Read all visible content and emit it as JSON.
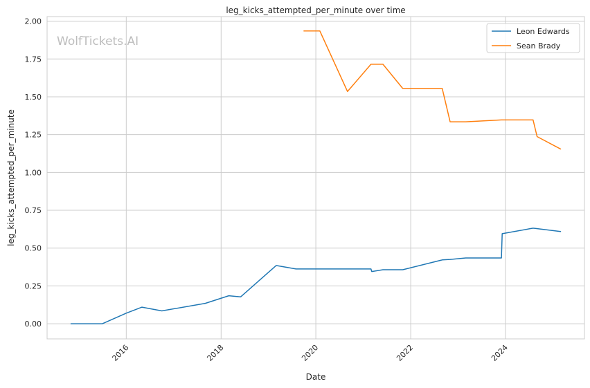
{
  "chart_data": {
    "type": "line",
    "title": "leg_kicks_attempted_per_minute over time",
    "xlabel": "Date",
    "ylabel": "leg_kicks_attempted_per_minute",
    "watermark": "WolfTickets.AI",
    "x_is_date": true,
    "xlim": [
      "2014-05-01",
      "2025-09-01"
    ],
    "ylim": [
      -0.1,
      2.03
    ],
    "x_ticks": [
      "2016-01-01",
      "2018-01-01",
      "2020-01-01",
      "2022-01-01",
      "2024-01-01"
    ],
    "x_tick_labels": [
      "2016",
      "2018",
      "2020",
      "2022",
      "2024"
    ],
    "y_ticks": [
      0.0,
      0.25,
      0.5,
      0.75,
      1.0,
      1.25,
      1.5,
      1.75,
      2.0
    ],
    "y_tick_labels": [
      "0.00",
      "0.25",
      "0.50",
      "0.75",
      "1.00",
      "1.25",
      "1.50",
      "1.75",
      "2.00"
    ],
    "grid": true,
    "legend_position": "top-right",
    "series": [
      {
        "name": "Leon Edwards",
        "color": "#1f77b4",
        "points": [
          [
            "2014-11-01",
            0.0
          ],
          [
            "2015-07-01",
            0.0
          ],
          [
            "2016-01-01",
            0.07
          ],
          [
            "2016-05-01",
            0.11
          ],
          [
            "2016-10-01",
            0.085
          ],
          [
            "2017-09-01",
            0.135
          ],
          [
            "2018-03-01",
            0.185
          ],
          [
            "2018-06-01",
            0.178
          ],
          [
            "2019-03-01",
            0.385
          ],
          [
            "2019-08-01",
            0.362
          ],
          [
            "2021-03-01",
            0.362
          ],
          [
            "2021-03-07",
            0.345
          ],
          [
            "2021-06-01",
            0.357
          ],
          [
            "2021-11-01",
            0.357
          ],
          [
            "2022-09-01",
            0.422
          ],
          [
            "2022-11-01",
            0.425
          ],
          [
            "2023-03-01",
            0.435
          ],
          [
            "2023-12-01",
            0.435
          ],
          [
            "2023-12-07",
            0.595
          ],
          [
            "2024-08-01",
            0.632
          ],
          [
            "2025-03-01",
            0.61
          ]
        ]
      },
      {
        "name": "Sean Brady",
        "color": "#ff7f0e",
        "points": [
          [
            "2019-10-01",
            1.935
          ],
          [
            "2020-02-01",
            1.935
          ],
          [
            "2020-09-01",
            1.535
          ],
          [
            "2021-03-01",
            1.715
          ],
          [
            "2021-06-01",
            1.715
          ],
          [
            "2021-11-01",
            1.555
          ],
          [
            "2022-09-01",
            1.555
          ],
          [
            "2022-11-01",
            1.335
          ],
          [
            "2023-03-01",
            1.335
          ],
          [
            "2023-12-01",
            1.347
          ],
          [
            "2024-08-01",
            1.347
          ],
          [
            "2024-09-01",
            1.237
          ],
          [
            "2025-03-01",
            1.155
          ]
        ]
      }
    ]
  }
}
